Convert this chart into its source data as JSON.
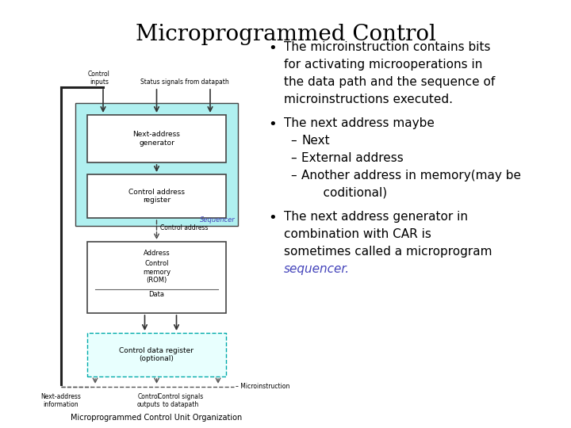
{
  "title": "Microprogrammed Control",
  "title_fontsize": 20,
  "bg_color": "#ffffff",
  "diagram_caption": "Microprogrammed Control Unit Organization",
  "bullet1_lines": [
    "The microinstruction contains bits",
    "for activating microoperations in",
    "the data path and the sequence of",
    "microinstructions executed."
  ],
  "bullet2_main": "The next address maybe",
  "sub_items": [
    "Next",
    "External address",
    "Another address in memory(may be",
    "    coditional)"
  ],
  "bullet3_lines": [
    "The next address generator in",
    "combination with CAR is",
    "sometimes called a microprogram"
  ],
  "bullet3_italic": "sequencer.",
  "sequencer_color": "#4444bb",
  "box_cyan_fill": "#b0f0f0",
  "box_cyan_dashed_fill": "#e8fffe",
  "box_white_fill": "#ffffff",
  "box_dark_edge": "#444444",
  "box_cyan_edge": "#00aaaa",
  "text_color": "#000000",
  "text_fontsize": 11,
  "sub_fontsize": 11
}
